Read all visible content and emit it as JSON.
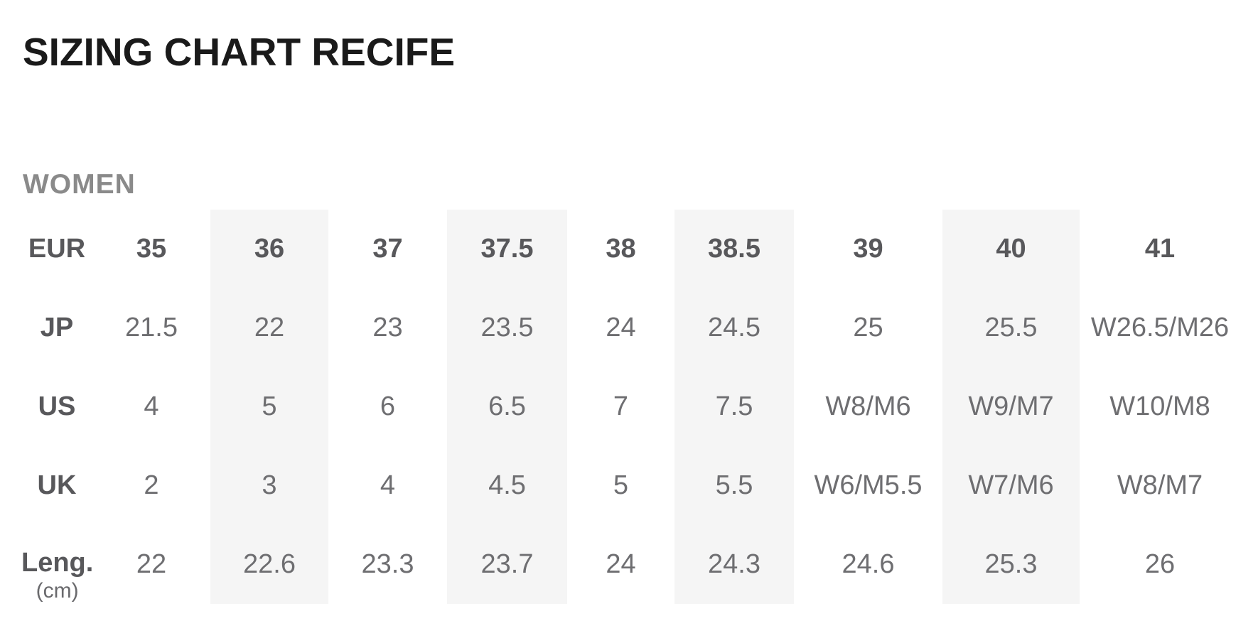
{
  "page": {
    "title": "SIZING CHART RECIFE",
    "section_heading": "WOMEN"
  },
  "colors": {
    "background": "#ffffff",
    "title_text": "#1a1a1a",
    "section_heading_text": "#8a8a8a",
    "table_label_text": "#58585b",
    "table_value_text": "#6e6e71",
    "column_stripe": "#f5f5f5"
  },
  "chart_data": {
    "type": "table",
    "title": "SIZING CHART RECIFE",
    "section": "WOMEN",
    "columns": [
      "EUR",
      "35",
      "36",
      "37",
      "37.5",
      "38",
      "38.5",
      "39",
      "40",
      "41"
    ],
    "striped_columns": [
      "36",
      "37.5",
      "38.5",
      "40"
    ],
    "rows": [
      {
        "label": "JP",
        "unit": "",
        "values": [
          "21.5",
          "22",
          "23",
          "23.5",
          "24",
          "24.5",
          "25",
          "25.5",
          "W26.5/M26"
        ]
      },
      {
        "label": "US",
        "unit": "",
        "values": [
          "4",
          "5",
          "6",
          "6.5",
          "7",
          "7.5",
          "W8/M6",
          "W9/M7",
          "W10/M8"
        ]
      },
      {
        "label": "UK",
        "unit": "",
        "values": [
          "2",
          "3",
          "4",
          "4.5",
          "5",
          "5.5",
          "W6/M5.5",
          "W7/M6",
          "W8/M7"
        ]
      },
      {
        "label": "Leng.",
        "unit": "(cm)",
        "values": [
          "22",
          "22.6",
          "23.3",
          "23.7",
          "24",
          "24.3",
          "24.6",
          "25.3",
          "26"
        ]
      }
    ]
  }
}
